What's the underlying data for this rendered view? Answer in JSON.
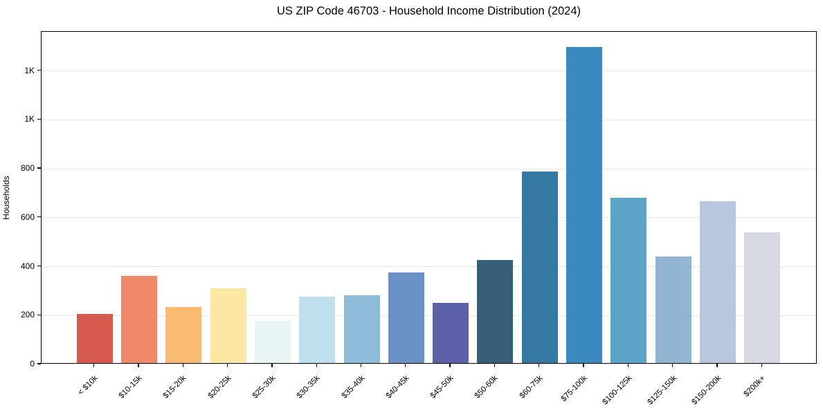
{
  "chart_data": {
    "type": "bar",
    "title": "US ZIP Code 46703 - Household Income Distribution (2024)",
    "xlabel": "",
    "ylabel": "Households",
    "categories": [
      "< $10k",
      "$10-15k",
      "$15-20k",
      "$20-25k",
      "$25-30k",
      "$30-35k",
      "$35-40k",
      "$40-45k",
      "$45-50k",
      "$50-60k",
      "$60-75k",
      "$75-100k",
      "$100-125k",
      "$125-150k",
      "$150-200k",
      "$200k+"
    ],
    "values": [
      200,
      355,
      230,
      306,
      173,
      272,
      278,
      370,
      247,
      420,
      782,
      1293,
      676,
      436,
      663,
      535
    ],
    "bar_colors": [
      "#d6594e",
      "#f0886a",
      "#f9bb72",
      "#fde7a4",
      "#e9f4f4",
      "#bfdfec",
      "#8fbcd9",
      "#6b92c6",
      "#5c60a8",
      "#365f78",
      "#3579a0",
      "#3a8abf",
      "#5ba4c7",
      "#92b5d3",
      "#b9c7dd",
      "#d6d8e2"
    ],
    "ylim": [
      0,
      1360
    ],
    "yticks": [
      {
        "value": 0,
        "label": "0"
      },
      {
        "value": 200,
        "label": "200"
      },
      {
        "value": 400,
        "label": "400"
      },
      {
        "value": 600,
        "label": "600"
      },
      {
        "value": 800,
        "label": "800"
      },
      {
        "value": 1000,
        "label": "1K"
      },
      {
        "value": 1200,
        "label": "1K"
      }
    ],
    "grid": "horizontal gridlines on, light gray",
    "legend": "none"
  },
  "colors": {
    "background": "#ffffff",
    "spine": "#000000",
    "grid": "#e7e7e7",
    "text": "#000000"
  }
}
